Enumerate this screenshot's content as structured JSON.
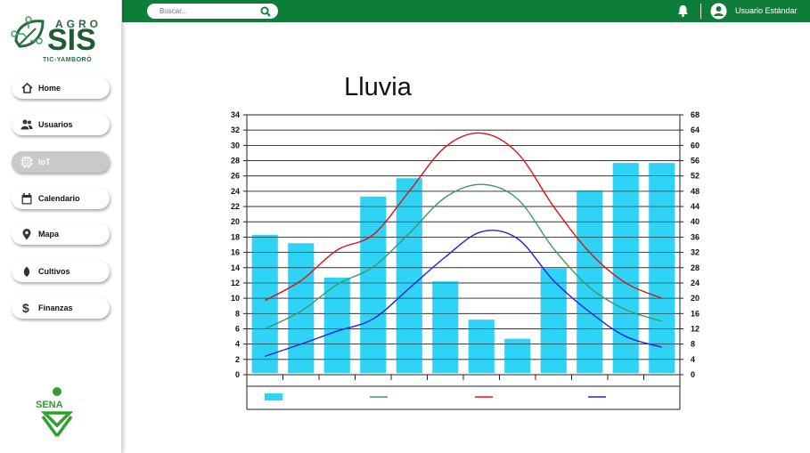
{
  "app": {
    "brand_top": "AGRO",
    "brand_main": "SIS",
    "brand_sub": "TIC-YAMBORÓ",
    "footer_logo": "SENA"
  },
  "header": {
    "search_placeholder": "Buscar...",
    "user_name": "Usuario Estándar",
    "bg_color": "#0f7d3a"
  },
  "sidebar": {
    "items": [
      {
        "label": "Home",
        "icon": "home-icon"
      },
      {
        "label": "Usuarios",
        "icon": "users-icon"
      },
      {
        "label": "IoT",
        "icon": "chip-icon",
        "active": true
      },
      {
        "label": "Calendario",
        "icon": "calendar-icon"
      },
      {
        "label": "Mapa",
        "icon": "map-pin-icon"
      },
      {
        "label": "Cultivos",
        "icon": "leaf-icon"
      },
      {
        "label": "Finanzas",
        "icon": "dollar-icon"
      }
    ]
  },
  "chart_data": {
    "type": "bar",
    "title": "Lluvia",
    "categories": [
      "",
      "",
      "",
      "",
      "",
      "",
      "",
      "",
      "",
      "",
      "",
      ""
    ],
    "left_ticks": [
      0,
      2,
      4,
      6,
      8,
      10,
      12,
      14,
      16,
      18,
      20,
      22,
      24,
      26,
      28,
      30,
      32,
      34
    ],
    "right_ticks": [
      0,
      4,
      8,
      12,
      16,
      20,
      24,
      28,
      32,
      36,
      40,
      44,
      48,
      52,
      56,
      60,
      64,
      68
    ],
    "ylim": [
      0,
      34
    ],
    "ylim_right": [
      0,
      68
    ],
    "grid": true,
    "legend": "bottom",
    "series": [
      {
        "type": "bar",
        "axis": "left",
        "color": "#2fd3f5",
        "values": [
          18.3,
          17.2,
          12.7,
          23.3,
          25.7,
          12.2,
          7.2,
          4.7,
          13.9,
          24.1,
          27.7,
          27.7
        ]
      },
      {
        "type": "line",
        "axis": "left",
        "color": "#3a9a6a",
        "values": [
          6.0,
          8.3,
          11.8,
          14.1,
          18.5,
          23.2,
          24.9,
          23.0,
          16.5,
          11.4,
          8.5,
          7.0
        ]
      },
      {
        "type": "line",
        "axis": "left",
        "color": "#e01010",
        "values": [
          9.7,
          12.3,
          16.3,
          18.3,
          24.0,
          29.8,
          31.6,
          29.0,
          22.0,
          16.0,
          12.0,
          10.0
        ]
      },
      {
        "type": "line",
        "axis": "left",
        "color": "#2222dd",
        "values": [
          2.4,
          4.0,
          5.7,
          7.3,
          11.3,
          15.4,
          18.7,
          17.8,
          12.3,
          8.2,
          5.0,
          3.6
        ]
      }
    ]
  }
}
